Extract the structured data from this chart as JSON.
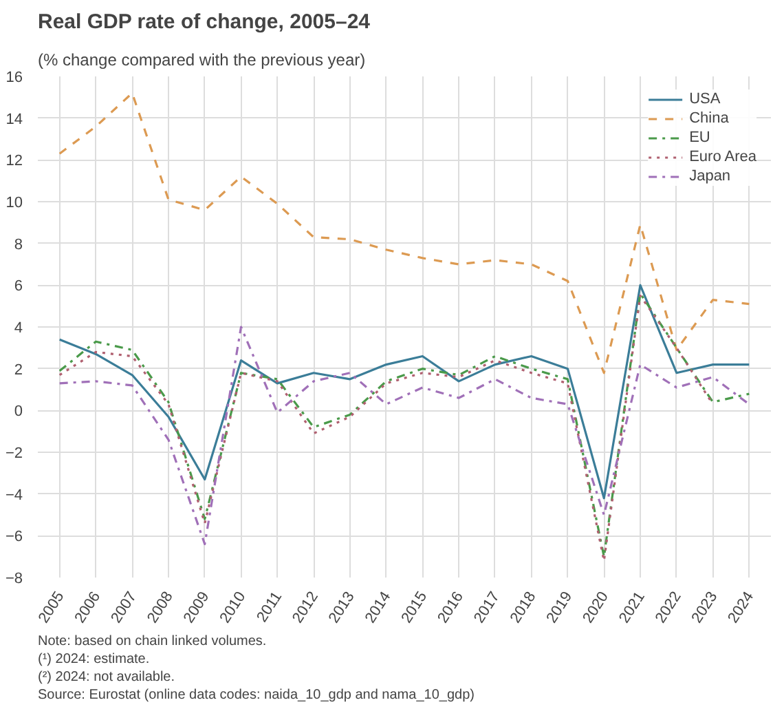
{
  "chart_data": {
    "type": "line",
    "title": "Real GDP rate of change, 2005–24",
    "subtitle": "(% change compared with the previous year)",
    "categories": [
      "2005",
      "2006",
      "2007",
      "2008",
      "2009",
      "2010",
      "2011",
      "2012",
      "2013",
      "2014",
      "2015",
      "2016",
      "2017",
      "2018",
      "2019",
      "2020",
      "2021",
      "2022",
      "2023",
      "2024"
    ],
    "series": [
      {
        "name": "USA",
        "color": "#3b7d98",
        "line_style": "solid",
        "values": [
          3.4,
          2.7,
          1.7,
          -0.3,
          -3.3,
          2.4,
          1.3,
          1.8,
          1.5,
          2.2,
          2.6,
          1.4,
          2.2,
          2.6,
          2.0,
          -4.2,
          6.0,
          1.8,
          2.2,
          2.2
        ]
      },
      {
        "name": "China",
        "color": "#dc9a52",
        "line_style": "dashed",
        "values": [
          12.3,
          13.6,
          15.2,
          10.1,
          9.6,
          11.2,
          9.9,
          8.3,
          8.2,
          7.7,
          7.3,
          7.0,
          7.2,
          7.0,
          6.2,
          1.8,
          8.9,
          2.9,
          5.3,
          5.1
        ]
      },
      {
        "name": "EU",
        "color": "#4a9a4a",
        "line_style": "dashdot",
        "values": [
          1.9,
          3.3,
          2.9,
          0.4,
          -5.2,
          1.8,
          1.5,
          -0.8,
          -0.2,
          1.4,
          2.0,
          1.7,
          2.6,
          2.0,
          1.5,
          -7.0,
          5.6,
          3.0,
          0.4,
          0.8
        ]
      },
      {
        "name": "Euro Area",
        "color": "#b06070",
        "line_style": "dotted",
        "values": [
          1.7,
          2.8,
          2.6,
          0.3,
          -5.4,
          1.8,
          1.4,
          -1.1,
          -0.3,
          1.3,
          1.8,
          1.6,
          2.4,
          1.8,
          1.3,
          -7.2,
          5.5,
          3.0,
          0.3,
          null
        ]
      },
      {
        "name": "Japan",
        "color": "#a070b8",
        "line_style": "dashdot",
        "values": [
          1.3,
          1.4,
          1.2,
          -1.4,
          -6.4,
          4.0,
          -0.1,
          1.4,
          1.8,
          0.3,
          1.1,
          0.6,
          1.5,
          0.6,
          0.3,
          -5.0,
          2.2,
          1.1,
          1.6,
          0.3
        ]
      }
    ],
    "ylim": [
      -8,
      16
    ],
    "yticks": [
      -8,
      -6,
      -4,
      -2,
      0,
      2,
      4,
      6,
      8,
      10,
      12,
      14,
      16
    ],
    "grid": true,
    "legend": "top right",
    "annotations": [
      "Note: based on chain linked volumes.",
      "(¹) 2024: estimate.",
      "(²) 2024: not available.",
      "Source: Eurostat (online data codes: naida_10_gdp and nama_10_gdp)"
    ]
  }
}
